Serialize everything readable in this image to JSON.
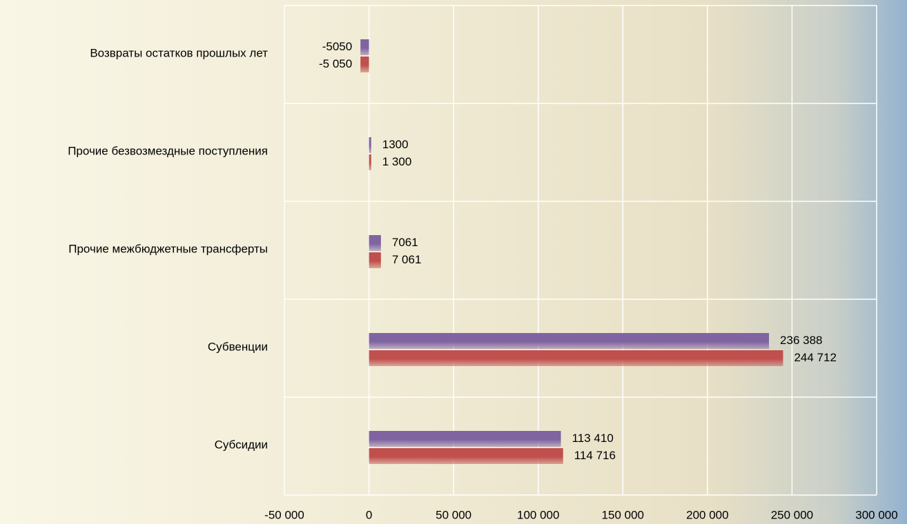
{
  "chart_data": {
    "type": "bar",
    "orientation": "horizontal",
    "categories": [
      "Возвраты остатков прошлых лет",
      "Прочие безвозмездные поступления",
      "Прочие межбюджетные трансферты",
      "Субвенции",
      "Субсидии"
    ],
    "series": [
      {
        "color": "#8064a2",
        "values": [
          -5050,
          1300,
          7061,
          236388,
          113410
        ],
        "value_labels": [
          "-5050",
          "1300",
          "7061",
          "236 388",
          "113 410"
        ]
      },
      {
        "color": "#c0504d",
        "values": [
          -5050,
          1300,
          7061,
          244712,
          114716
        ],
        "value_labels": [
          "-5 050",
          "1 300",
          "7 061",
          "244 712",
          "114 716"
        ]
      }
    ],
    "xlim": [
      -50000,
      300000
    ],
    "xticks": [
      {
        "value": -50000,
        "label": "-50 000"
      },
      0,
      {
        "value": 50000,
        "label": "50 000"
      },
      {
        "value": 100000,
        "label": "100 000"
      },
      {
        "value": 150000,
        "label": "150 000"
      },
      {
        "value": 200000,
        "label": "200 000"
      },
      {
        "value": 250000,
        "label": "250 000"
      },
      {
        "value": 300000,
        "label": "300 000"
      }
    ],
    "grid": true
  }
}
